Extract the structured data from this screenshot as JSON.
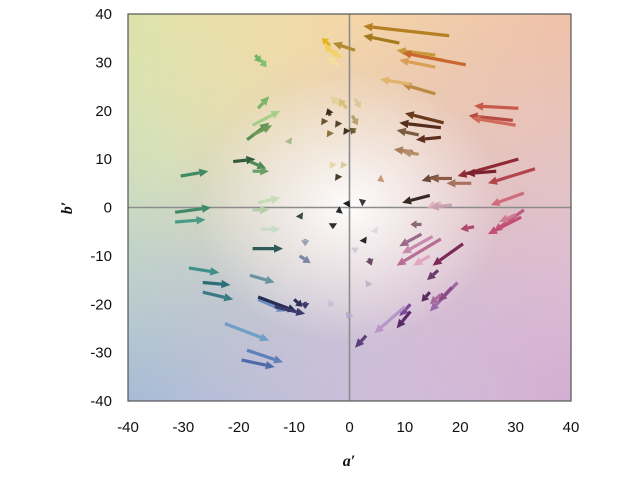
{
  "chart_data": {
    "type": "vector-field",
    "xlabel": "a′",
    "ylabel": "b′",
    "xlim": [
      -40,
      40
    ],
    "ylim": [
      -40,
      40
    ],
    "xticks": [
      -40,
      -30,
      -20,
      -10,
      0,
      10,
      20,
      30,
      40
    ],
    "yticks": [
      -40,
      -30,
      -20,
      -10,
      0,
      10,
      20,
      30,
      40
    ],
    "zero_lines": true,
    "background": "hue gradient by a′/b′ position (green top-left, yellow top, orange top-right, pink/purple bottom-right, blue bottom-left, white center)",
    "arrows": [
      {
        "from": [
          -30.5,
          6.5
        ],
        "to": [
          -25.5,
          7.5
        ],
        "color": "#3f8a62"
      },
      {
        "from": [
          -31.5,
          -1.0
        ],
        "to": [
          -25.0,
          0.0
        ],
        "color": "#3f8a68"
      },
      {
        "from": [
          -31.5,
          -3.0
        ],
        "to": [
          -26.0,
          -2.5
        ],
        "color": "#4a9d84"
      },
      {
        "from": [
          -29.0,
          -12.5
        ],
        "to": [
          -23.5,
          -13.5
        ],
        "color": "#3f9088"
      },
      {
        "from": [
          -26.5,
          -15.5
        ],
        "to": [
          -21.5,
          -16.0
        ],
        "color": "#2c6f78"
      },
      {
        "from": [
          -26.5,
          -17.5
        ],
        "to": [
          -21.0,
          -19.0
        ],
        "color": "#3a7a83"
      },
      {
        "from": [
          -22.5,
          -24.0
        ],
        "to": [
          -14.5,
          -27.5
        ],
        "color": "#6f9ec6"
      },
      {
        "from": [
          -18.5,
          -29.5
        ],
        "to": [
          -12.0,
          -32.0
        ],
        "color": "#5f7fb8"
      },
      {
        "from": [
          -19.5,
          -31.5
        ],
        "to": [
          -13.5,
          -33.0
        ],
        "color": "#4f6caa"
      },
      {
        "from": [
          -21.0,
          9.5
        ],
        "to": [
          -17.0,
          10.0
        ],
        "color": "#315c3e"
      },
      {
        "from": [
          -18.0,
          9.5
        ],
        "to": [
          -15.0,
          8.0
        ],
        "color": "#4e8a56"
      },
      {
        "from": [
          -17.5,
          7.5
        ],
        "to": [
          -14.5,
          7.5
        ],
        "color": "#6aa065"
      },
      {
        "from": [
          -17.0,
          31.5
        ],
        "to": [
          -16.0,
          30.0
        ],
        "color": "#6fb465"
      },
      {
        "from": [
          -16.0,
          30.5
        ],
        "to": [
          -15.0,
          29.0
        ],
        "color": "#7ec070"
      },
      {
        "from": [
          -16.5,
          20.5
        ],
        "to": [
          -14.5,
          23.0
        ],
        "color": "#7bb56d"
      },
      {
        "from": [
          -17.5,
          17.0
        ],
        "to": [
          -12.5,
          20.0
        ],
        "color": "#a7cf8b"
      },
      {
        "from": [
          -18.5,
          14.0
        ],
        "to": [
          -14.5,
          17.5
        ],
        "color": "#5a8e4f"
      },
      {
        "from": [
          -17.5,
          15.0
        ],
        "to": [
          -14.0,
          17.0
        ],
        "color": "#6f9a55"
      },
      {
        "from": [
          -11.0,
          14.0
        ],
        "to": [
          -10.5,
          13.0
        ],
        "color": "#a9ba8c"
      },
      {
        "from": [
          -16.5,
          1.0
        ],
        "to": [
          -12.5,
          2.0
        ],
        "color": "#c5dcb5"
      },
      {
        "from": [
          -17.5,
          -0.5
        ],
        "to": [
          -14.5,
          -0.5
        ],
        "color": "#b7cfa8"
      },
      {
        "from": [
          -16.0,
          -4.5
        ],
        "to": [
          -12.5,
          -4.5
        ],
        "color": "#c8dcc9"
      },
      {
        "from": [
          -17.5,
          -8.5
        ],
        "to": [
          -12.0,
          -8.5
        ],
        "color": "#2f5a58"
      },
      {
        "from": [
          -18.0,
          -14.0
        ],
        "to": [
          -13.5,
          -15.5
        ],
        "color": "#6a95a0"
      },
      {
        "from": [
          -16.5,
          -19.0
        ],
        "to": [
          -11.5,
          -21.5
        ],
        "color": "#6a8fbf"
      },
      {
        "from": [
          -16.5,
          -18.5
        ],
        "to": [
          -9.5,
          -21.5
        ],
        "color": "#262c52"
      },
      {
        "from": [
          -13.5,
          -20.5
        ],
        "to": [
          -8.0,
          -22.0
        ],
        "color": "#3b3a6d"
      },
      {
        "from": [
          -9.0,
          -1.5
        ],
        "to": [
          -8.5,
          -2.5
        ],
        "color": "#3d4a48"
      },
      {
        "from": [
          -8.0,
          -6.5
        ],
        "to": [
          -8.0,
          -8.0
        ],
        "color": "#9aa0b5"
      },
      {
        "from": [
          -9.0,
          -10.0
        ],
        "to": [
          -7.0,
          -11.5
        ],
        "color": "#7e86a5"
      },
      {
        "from": [
          -10.0,
          -19.0
        ],
        "to": [
          -8.5,
          -20.5
        ],
        "color": "#2c2d5a"
      },
      {
        "from": [
          -8.0,
          -19.5
        ],
        "to": [
          -8.0,
          -21.0
        ],
        "color": "#3a3a6b"
      },
      {
        "from": [
          -3.5,
          33.5
        ],
        "to": [
          -5.0,
          35.0
        ],
        "color": "#e3b41c"
      },
      {
        "from": [
          -3.0,
          32.0
        ],
        "to": [
          -4.5,
          33.5
        ],
        "color": "#f2cf55"
      },
      {
        "from": [
          1.0,
          32.5
        ],
        "to": [
          -3.0,
          34.0
        ],
        "color": "#b08a35"
      },
      {
        "from": [
          -1.5,
          31.0
        ],
        "to": [
          -3.5,
          32.5
        ],
        "color": "#f3d26a"
      },
      {
        "from": [
          -2.0,
          29.5
        ],
        "to": [
          -4.0,
          31.0
        ],
        "color": "#f6e09a"
      },
      {
        "from": [
          -1.5,
          21.0
        ],
        "to": [
          -3.5,
          23.0
        ],
        "color": "#e5d29a"
      },
      {
        "from": [
          -0.5,
          20.5
        ],
        "to": [
          -2.0,
          22.5
        ],
        "color": "#d7c07a"
      },
      {
        "from": [
          -3.5,
          19.0
        ],
        "to": [
          -4.0,
          20.5
        ],
        "color": "#3d2f1c"
      },
      {
        "from": [
          -4.5,
          17.5
        ],
        "to": [
          -5.0,
          18.5
        ],
        "color": "#6a5630"
      },
      {
        "from": [
          -3.5,
          15.0
        ],
        "to": [
          -4.0,
          16.0
        ],
        "color": "#8a7440"
      },
      {
        "from": [
          -2.0,
          17.0
        ],
        "to": [
          -2.5,
          18.0
        ],
        "color": "#55472b"
      },
      {
        "from": [
          -0.5,
          15.5
        ],
        "to": [
          -1.0,
          16.5
        ],
        "color": "#3d3523"
      },
      {
        "from": [
          1.0,
          15.5
        ],
        "to": [
          0.0,
          16.5
        ],
        "color": "#6c5a31"
      },
      {
        "from": [
          -3.0,
          8.5
        ],
        "to": [
          -3.5,
          9.5
        ],
        "color": "#e8d6a8"
      },
      {
        "from": [
          -1.0,
          8.5
        ],
        "to": [
          -1.5,
          9.5
        ],
        "color": "#d9cba0"
      },
      {
        "from": [
          -2.0,
          6.0
        ],
        "to": [
          -2.5,
          7.0
        ],
        "color": "#473c25"
      },
      {
        "from": [
          1.0,
          22.5
        ],
        "to": [
          2.0,
          20.5
        ],
        "color": "#dcc79a"
      },
      {
        "from": [
          0.5,
          19.0
        ],
        "to": [
          1.5,
          17.0
        ],
        "color": "#b7a06c"
      },
      {
        "from": [
          -0.5,
          0.5
        ],
        "to": [
          0.0,
          1.5
        ],
        "color": "#1f1f1f"
      },
      {
        "from": [
          -1.5,
          -0.5
        ],
        "to": [
          -2.5,
          -1.0
        ],
        "color": "#2b2b2b"
      },
      {
        "from": [
          2.0,
          1.0
        ],
        "to": [
          3.0,
          1.5
        ],
        "color": "#3a3a3a"
      },
      {
        "from": [
          -3.0,
          -3.5
        ],
        "to": [
          -3.0,
          -4.5
        ],
        "color": "#2d2d2d"
      },
      {
        "from": [
          2.5,
          -6.5
        ],
        "to": [
          3.0,
          -7.5
        ],
        "color": "#262626"
      },
      {
        "from": [
          1.0,
          -8.5
        ],
        "to": [
          1.0,
          -9.5
        ],
        "color": "#d8c8d8"
      },
      {
        "from": [
          3.5,
          -15.5
        ],
        "to": [
          3.0,
          -16.5
        ],
        "color": "#c7b4c8"
      },
      {
        "from": [
          -3.0,
          -19.5
        ],
        "to": [
          -4.0,
          -20.5
        ],
        "color": "#c8c0d8"
      },
      {
        "from": [
          0.0,
          -22.0
        ],
        "to": [
          -0.5,
          -23.0
        ],
        "color": "#b6a9cc"
      },
      {
        "from": [
          3.5,
          -10.5
        ],
        "to": [
          4.0,
          -12.0
        ],
        "color": "#6b4a66"
      },
      {
        "from": [
          3.0,
          -26.5
        ],
        "to": [
          1.0,
          -29.0
        ],
        "color": "#5c3c7b"
      },
      {
        "from": [
          4.5,
          -4.5
        ],
        "to": [
          5.0,
          -5.5
        ],
        "color": "#e6d6df"
      },
      {
        "from": [
          6.0,
          6.0
        ],
        "to": [
          5.0,
          5.5
        ],
        "color": "#c59a76"
      },
      {
        "from": [
          18.0,
          35.5
        ],
        "to": [
          2.5,
          37.5
        ],
        "color": "#b57f22"
      },
      {
        "from": [
          9.0,
          34.0
        ],
        "to": [
          2.5,
          35.5
        ],
        "color": "#a47a1e"
      },
      {
        "from": [
          15.5,
          31.5
        ],
        "to": [
          8.5,
          32.5
        ],
        "color": "#c8993b"
      },
      {
        "from": [
          15.5,
          29.0
        ],
        "to": [
          9.0,
          30.5
        ],
        "color": "#d89f55"
      },
      {
        "from": [
          17.0,
          30.5
        ],
        "to": [
          9.5,
          32.0
        ],
        "color": "#e2b46a"
      },
      {
        "from": [
          21.0,
          29.5
        ],
        "to": [
          9.5,
          32.0
        ],
        "color": "#c8682f"
      },
      {
        "from": [
          15.5,
          23.5
        ],
        "to": [
          9.5,
          25.5
        ],
        "color": "#bd8a45"
      },
      {
        "from": [
          11.0,
          25.5
        ],
        "to": [
          5.5,
          26.5
        ],
        "color": "#e0b46c"
      },
      {
        "from": [
          16.5,
          16.5
        ],
        "to": [
          9.0,
          17.5
        ],
        "color": "#552d1a"
      },
      {
        "from": [
          17.0,
          17.5
        ],
        "to": [
          10.0,
          19.5
        ],
        "color": "#6a3a1a"
      },
      {
        "from": [
          12.5,
          15.0
        ],
        "to": [
          8.5,
          16.0
        ],
        "color": "#7a5c3e"
      },
      {
        "from": [
          16.5,
          14.5
        ],
        "to": [
          12.0,
          14.0
        ],
        "color": "#5c2e1e"
      },
      {
        "from": [
          11.5,
          11.5
        ],
        "to": [
          8.0,
          12.0
        ],
        "color": "#a87e5c"
      },
      {
        "from": [
          12.5,
          11.0
        ],
        "to": [
          9.5,
          11.5
        ],
        "color": "#b58e6a"
      },
      {
        "from": [
          16.0,
          6.5
        ],
        "to": [
          13.0,
          5.5
        ],
        "color": "#6c4b3c"
      },
      {
        "from": [
          18.5,
          6.0
        ],
        "to": [
          14.5,
          6.0
        ],
        "color": "#8d5a46"
      },
      {
        "from": [
          22.0,
          5.0
        ],
        "to": [
          17.5,
          5.0
        ],
        "color": "#a8705e"
      },
      {
        "from": [
          14.5,
          2.5
        ],
        "to": [
          9.5,
          1.0
        ],
        "color": "#3a2a25"
      },
      {
        "from": [
          30.5,
          20.5
        ],
        "to": [
          22.5,
          21.0
        ],
        "color": "#c85a4a"
      },
      {
        "from": [
          29.5,
          18.0
        ],
        "to": [
          21.5,
          19.0
        ],
        "color": "#b84a44"
      },
      {
        "from": [
          30.0,
          17.0
        ],
        "to": [
          22.0,
          18.5
        ],
        "color": "#d06a5a"
      },
      {
        "from": [
          30.5,
          10.0
        ],
        "to": [
          19.5,
          6.5
        ],
        "color": "#8f2a34"
      },
      {
        "from": [
          26.5,
          7.5
        ],
        "to": [
          21.0,
          7.0
        ],
        "color": "#7a2230"
      },
      {
        "from": [
          33.5,
          8.0
        ],
        "to": [
          25.0,
          5.0
        ],
        "color": "#b3444e"
      },
      {
        "from": [
          31.5,
          3.0
        ],
        "to": [
          25.5,
          0.5
        ],
        "color": "#cf6c7c"
      },
      {
        "from": [
          16.5,
          1.0
        ],
        "to": [
          14.0,
          0.0
        ],
        "color": "#e0b6c4"
      },
      {
        "from": [
          18.5,
          0.5
        ],
        "to": [
          14.5,
          0.0
        ],
        "color": "#c8a2ae"
      },
      {
        "from": [
          22.5,
          -4.0
        ],
        "to": [
          20.0,
          -4.5
        ],
        "color": "#ad4a6c"
      },
      {
        "from": [
          31.5,
          -0.5
        ],
        "to": [
          26.0,
          -5.0
        ],
        "color": "#bd5c7e"
      },
      {
        "from": [
          31.0,
          -2.0
        ],
        "to": [
          25.0,
          -5.5
        ],
        "color": "#c24f72"
      },
      {
        "from": [
          30.0,
          -1.5
        ],
        "to": [
          27.0,
          -3.0
        ],
        "color": "#cf7a95"
      },
      {
        "from": [
          13.0,
          -3.5
        ],
        "to": [
          11.0,
          -3.5
        ],
        "color": "#8a6878"
      },
      {
        "from": [
          13.0,
          -5.5
        ],
        "to": [
          9.0,
          -8.0
        ],
        "color": "#9a6a8a"
      },
      {
        "from": [
          15.0,
          -6.0
        ],
        "to": [
          9.5,
          -9.5
        ],
        "color": "#c88aaa"
      },
      {
        "from": [
          16.5,
          -6.5
        ],
        "to": [
          8.5,
          -12.0
        ],
        "color": "#b86e94"
      },
      {
        "from": [
          20.5,
          -7.5
        ],
        "to": [
          15.0,
          -12.0
        ],
        "color": "#7c2a55"
      },
      {
        "from": [
          14.5,
          -10.0
        ],
        "to": [
          11.5,
          -12.0
        ],
        "color": "#e0a6c2"
      },
      {
        "from": [
          19.5,
          -15.5
        ],
        "to": [
          14.5,
          -21.5
        ],
        "color": "#9a6aa8"
      },
      {
        "from": [
          18.5,
          -16.5
        ],
        "to": [
          16.0,
          -19.5
        ],
        "color": "#8a4a82"
      },
      {
        "from": [
          16.0,
          -13.0
        ],
        "to": [
          14.0,
          -15.0
        ],
        "color": "#6a3a6a"
      },
      {
        "from": [
          14.5,
          -17.5
        ],
        "to": [
          13.0,
          -19.5
        ],
        "color": "#5a2c5e"
      },
      {
        "from": [
          16.5,
          -18.0
        ],
        "to": [
          14.5,
          -20.0
        ],
        "color": "#a86a9a"
      },
      {
        "from": [
          11.0,
          -20.0
        ],
        "to": [
          9.0,
          -22.5
        ],
        "color": "#7a4a94"
      },
      {
        "from": [
          11.0,
          -21.5
        ],
        "to": [
          8.5,
          -25.0
        ],
        "color": "#5a2a6a"
      },
      {
        "from": [
          10.0,
          -20.5
        ],
        "to": [
          4.5,
          -26.0
        ],
        "color": "#b795c9"
      }
    ]
  }
}
